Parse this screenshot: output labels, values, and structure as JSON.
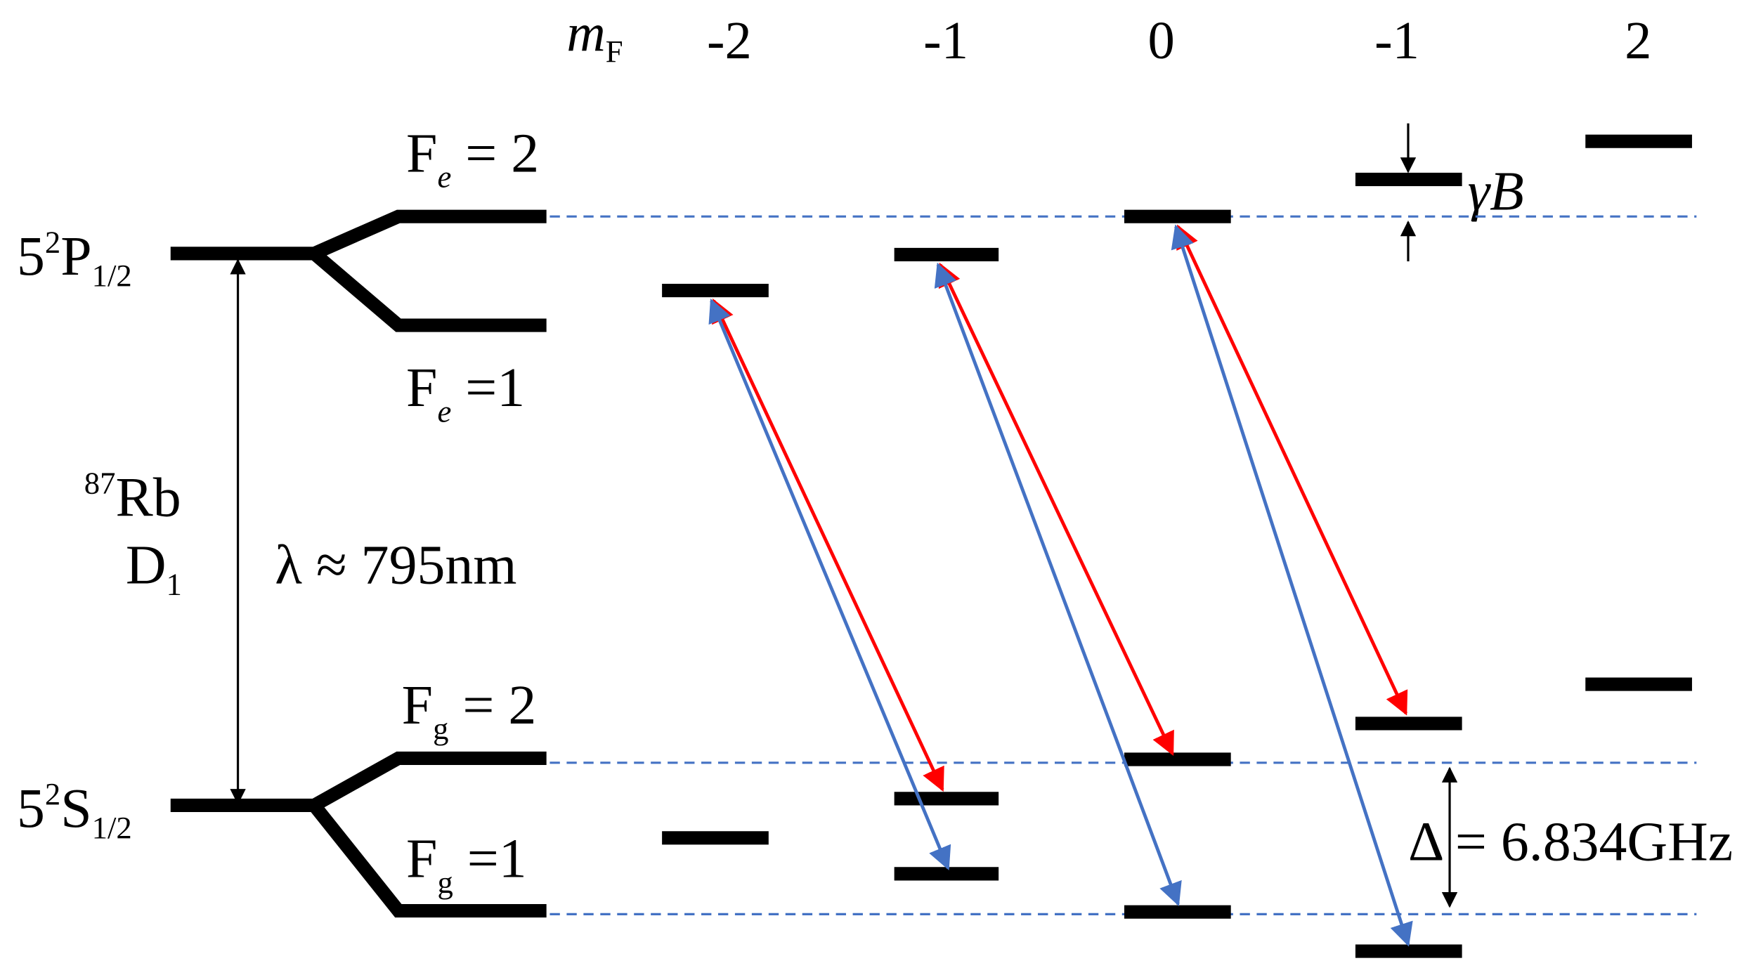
{
  "m_f_label": {
    "main": "m",
    "sub": "F"
  },
  "m_f_values": [
    "-2",
    "-1",
    "0",
    "-1",
    "2"
  ],
  "excited_state": {
    "n": "5",
    "sup": "2",
    "term": "P",
    "sub": "1/2"
  },
  "ground_state": {
    "n": "5",
    "sup": "2",
    "term": "S",
    "sub": "1/2"
  },
  "fe2": {
    "base": "F",
    "sub": "e",
    "rest": " = 2"
  },
  "fe1": {
    "base": "F",
    "sub": "e",
    "rest": " =1"
  },
  "fg2": {
    "base": "F",
    "sub": "g",
    "rest": " = 2"
  },
  "fg1": {
    "base": "F",
    "sub": "g",
    "rest": " =1"
  },
  "isotope": {
    "sup": "87",
    "main": "Rb"
  },
  "line": {
    "main": "D",
    "sub": "1"
  },
  "wavelength": "λ ≈ 795nm",
  "zeeman": "γB",
  "splitting": "Δ = 6.834GHz"
}
